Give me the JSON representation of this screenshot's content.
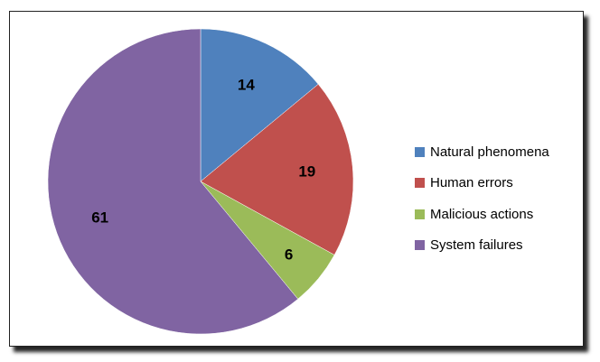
{
  "chart_data": {
    "type": "pie",
    "categories": [
      "Natural phenomena",
      "Human errors",
      "Malicious actions",
      "System failures"
    ],
    "values": [
      14,
      19,
      6,
      61
    ],
    "colors": [
      "#4f81bd",
      "#c0504d",
      "#9bbb59",
      "#8064a2"
    ],
    "data_labels": [
      "14",
      "19",
      "6",
      "61"
    ],
    "legend_position": "right"
  }
}
